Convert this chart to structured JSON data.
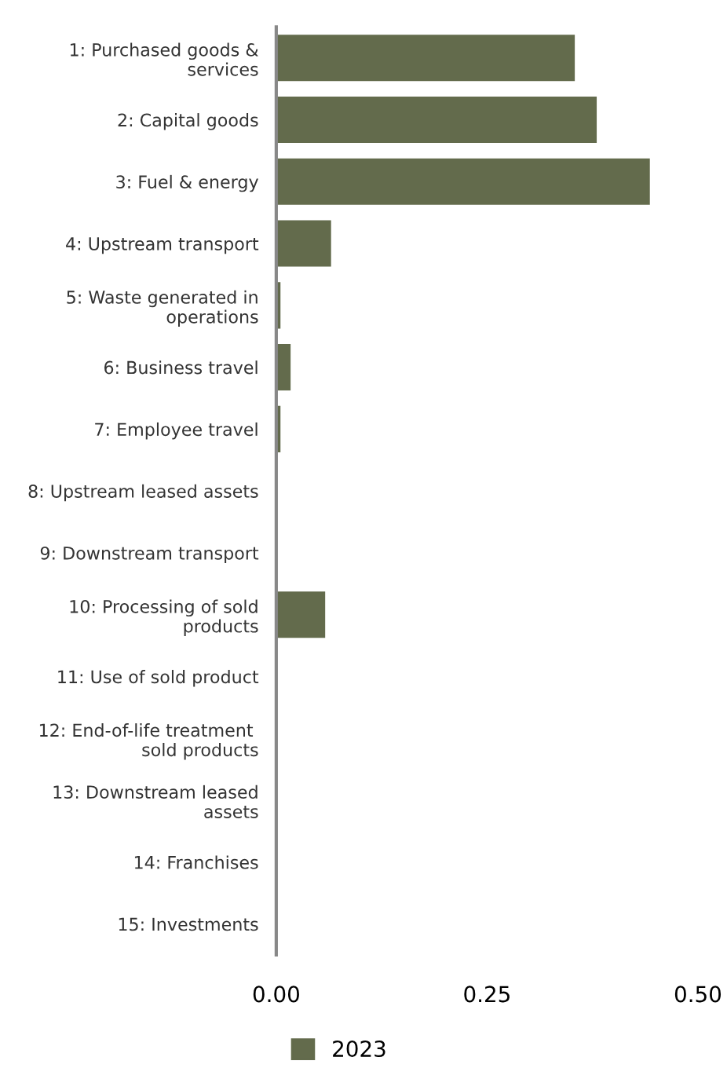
{
  "chart_data": {
    "type": "bar",
    "orientation": "horizontal",
    "categories": [
      "1: Purchased goods & services",
      "2: Capital goods",
      "3: Fuel & energy",
      "4: Upstream transport",
      "5: Waste generated in operations",
      "6: Business travel",
      "7: Employee travel",
      "8: Upstream leased assets",
      "9: Downstream transport",
      "10: Processing of sold products",
      "11: Use of sold product",
      "12: End-of-life treatment  sold products",
      "13: Downstream leased assets",
      "14: Franchises",
      "15: Investments"
    ],
    "series": [
      {
        "name": "2023",
        "color": "#636b4c",
        "values": [
          0.354,
          0.38,
          0.443,
          0.065,
          0.005,
          0.017,
          0.005,
          0,
          0,
          0.058,
          0,
          0,
          0,
          0,
          0
        ]
      }
    ],
    "xlim": [
      0,
      0.5
    ],
    "xticks": [
      {
        "value": 0,
        "label": "0.00"
      },
      {
        "value": 0.25,
        "label": "0.25"
      },
      {
        "value": 0.5,
        "label": "0.50"
      }
    ],
    "grid": false,
    "legend": "bottom"
  }
}
